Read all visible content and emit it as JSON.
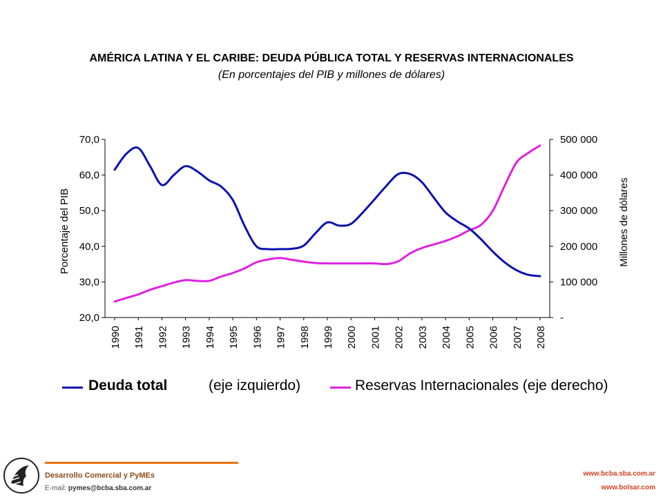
{
  "chart_data": {
    "type": "line",
    "title": "AMÉRICA LATINA Y EL CARIBE: DEUDA PÚBLICA TOTAL Y RESERVAS INTERNACIONALES",
    "subtitle": "(En porcentajes del PIB y millones de dólares)",
    "ylabel_left": "Porcentaje del PIB",
    "ylabel_right": "Millones de dólares",
    "ylim_left": [
      20,
      70
    ],
    "ylim_right": [
      0,
      500000
    ],
    "yticks_left": [
      "70,0",
      "60,0",
      "50,0",
      "40,0",
      "30,0",
      "20,0"
    ],
    "yticks_right": [
      "500 000",
      "400 000",
      "300 000",
      "200 000",
      "100 000",
      "-"
    ],
    "categories": [
      "1990",
      "1991",
      "1992",
      "1993",
      "1994",
      "1995",
      "1996",
      "1997",
      "1998",
      "1999",
      "2000",
      "2001",
      "2002",
      "2003",
      "2004",
      "2005",
      "2006",
      "2007",
      "2008"
    ],
    "x": [
      1990,
      1990.5,
      1991,
      1991.5,
      1992,
      1992.5,
      1993,
      1993.5,
      1994,
      1994.5,
      1995,
      1995.5,
      1996,
      1996.5,
      1997,
      1997.5,
      1998,
      1998.5,
      1999,
      1999.5,
      2000,
      2000.5,
      2001,
      2001.5,
      2002,
      2002.5,
      2003,
      2003.5,
      2004,
      2004.5,
      2005,
      2005.5,
      2006,
      2006.5,
      2007,
      2007.5,
      2008
    ],
    "series": [
      {
        "name": "Deuda total",
        "axis": "left",
        "color": "#0a10b0",
        "values": [
          61.5,
          66.0,
          67.6,
          62.5,
          57.2,
          60.0,
          62.5,
          61.0,
          58.5,
          56.8,
          53.0,
          45.7,
          40.0,
          39.2,
          39.2,
          39.3,
          40.2,
          43.7,
          46.7,
          45.8,
          46.3,
          49.5,
          53.2,
          57.0,
          60.3,
          60.3,
          58.0,
          53.7,
          49.5,
          47.0,
          45.0,
          42.0,
          38.5,
          35.5,
          33.3,
          32.0,
          31.6
        ]
      },
      {
        "name": "Reservas Internacionales",
        "axis": "right",
        "color": "#e020e0",
        "values": [
          45000,
          55000,
          65000,
          78000,
          88000,
          98000,
          105000,
          103000,
          103000,
          115000,
          125000,
          138000,
          155000,
          163000,
          167000,
          162000,
          157000,
          153000,
          152000,
          152000,
          152000,
          152000,
          152000,
          150000,
          158000,
          180000,
          195000,
          205000,
          215000,
          228000,
          245000,
          260000,
          300000,
          370000,
          435000,
          462000,
          483000
        ]
      }
    ],
    "grid": false
  },
  "legend": {
    "item1_label": "Deuda total",
    "item1_axis": "(eje izquierdo)",
    "item2_label": "Reservas Internacionales (eje derecho)"
  },
  "footer": {
    "org_title": "Desarrollo Comercial y PyMEs",
    "email_label": "E-mail:",
    "email": "pymes@bcba.sba.com.ar",
    "url1": "www.bcba.sba.com.ar",
    "url2": "www.bolsar.com"
  },
  "colors": {
    "deuda": "#0a10b0",
    "reservas": "#e020e0",
    "footer_line": "#f07010"
  }
}
